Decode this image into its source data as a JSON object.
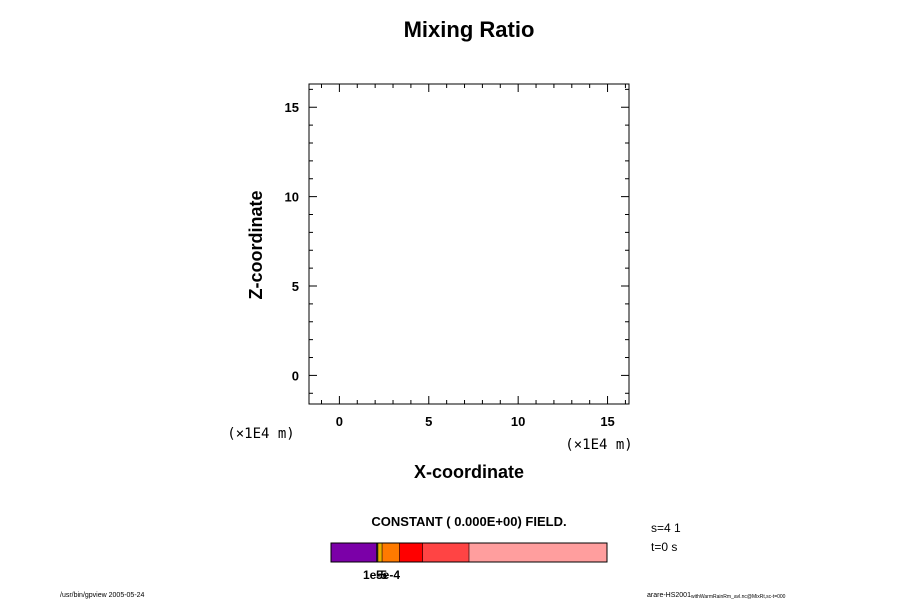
{
  "chart_data": {
    "type": "heatmap",
    "title": "Mixing Ratio",
    "xlabel": "X-coordinate",
    "ylabel": "Z-coordinate",
    "x_unit": "(×1E4 m)",
    "y_unit": "(×1E4 m)",
    "xlim": [
      -1.7,
      16.2
    ],
    "ylim": [
      -1.6,
      16.3
    ],
    "x_ticks": [
      0,
      5,
      10,
      15
    ],
    "y_ticks": [
      0,
      5,
      10,
      15
    ],
    "x_minor_step": 1,
    "y_minor_step": 1,
    "field_message": "CONSTANT ( 0.000E+00) FIELD.",
    "colorbar": {
      "segments": [
        {
          "color": "#7b00a8",
          "from": 0,
          "to": 0.165
        },
        {
          "color": "#222222",
          "from": 0.165,
          "to": 0.17
        },
        {
          "color": "#e8b000",
          "from": 0.17,
          "to": 0.185
        },
        {
          "color": "#ff7a00",
          "from": 0.185,
          "to": 0.248
        },
        {
          "color": "#ff0000",
          "from": 0.248,
          "to": 0.332
        },
        {
          "color": "#ff4444",
          "from": 0.332,
          "to": 0.5
        },
        {
          "color": "#ff9e9e",
          "from": 0.5,
          "to": 1
        }
      ],
      "tick_label_overlap": "1e-5",
      "tick_label": "5e-4"
    }
  },
  "info": {
    "step": "s=4 1",
    "time": "t=0 s"
  },
  "footer": {
    "left": "/usr/bin/gpview 2005-05-24",
    "right_main": "arare-HS2001",
    "right_sub": "withWarmRainRm_avl.nc@MixRt,sc-t=000"
  }
}
